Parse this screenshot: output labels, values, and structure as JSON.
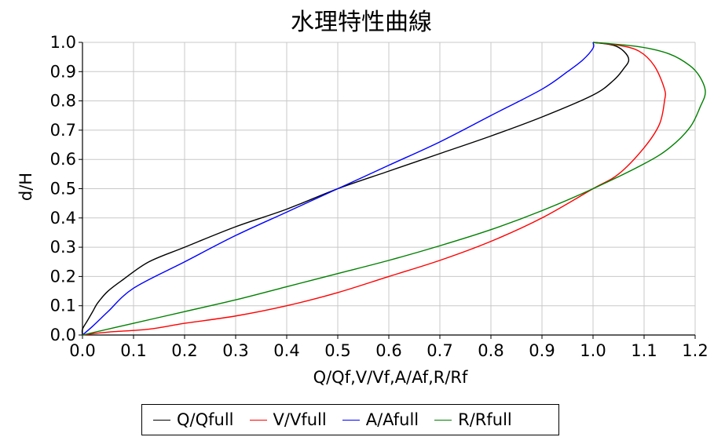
{
  "chart_data": {
    "type": "line",
    "title": "水理特性曲線",
    "xlabel": "Q/Qf,V/Vf,A/Af,R/Rf",
    "ylabel": "d/H",
    "xlim": [
      0,
      1.2
    ],
    "ylim": [
      0,
      1.0
    ],
    "x_ticks": [
      "0.0",
      "0.1",
      "0.2",
      "0.3",
      "0.4",
      "0.5",
      "0.6",
      "0.7",
      "0.8",
      "0.9",
      "1.0",
      "1.1",
      "1.2"
    ],
    "y_ticks": [
      "0.0",
      "0.1",
      "0.2",
      "0.3",
      "0.4",
      "0.5",
      "0.6",
      "0.7",
      "0.8",
      "0.9",
      "1.0"
    ],
    "grid": true,
    "legend_position": "bottom",
    "series": [
      {
        "name": "Q/Qfull",
        "color": "#000000",
        "points": [
          [
            0,
            0
          ],
          [
            0.0,
            0.02
          ],
          [
            0.01,
            0.05
          ],
          [
            0.02,
            0.08
          ],
          [
            0.03,
            0.11
          ],
          [
            0.05,
            0.15
          ],
          [
            0.08,
            0.19
          ],
          [
            0.13,
            0.25
          ],
          [
            0.2,
            0.3
          ],
          [
            0.3,
            0.37
          ],
          [
            0.4,
            0.43
          ],
          [
            0.5,
            0.5
          ],
          [
            0.6,
            0.56
          ],
          [
            0.7,
            0.62
          ],
          [
            0.8,
            0.68
          ],
          [
            0.9,
            0.745
          ],
          [
            1.0,
            0.82
          ],
          [
            1.04,
            0.87
          ],
          [
            1.06,
            0.91
          ],
          [
            1.07,
            0.94
          ],
          [
            1.06,
            0.97
          ],
          [
            1.04,
            0.99
          ],
          [
            1.0,
            1.0
          ]
        ]
      },
      {
        "name": "V/Vfull",
        "color": "#ff0000",
        "points": [
          [
            0,
            0
          ],
          [
            0.05,
            0.01
          ],
          [
            0.13,
            0.02
          ],
          [
            0.2,
            0.04
          ],
          [
            0.3,
            0.065
          ],
          [
            0.4,
            0.1
          ],
          [
            0.5,
            0.145
          ],
          [
            0.6,
            0.2
          ],
          [
            0.7,
            0.255
          ],
          [
            0.8,
            0.32
          ],
          [
            0.9,
            0.4
          ],
          [
            1.0,
            0.5
          ],
          [
            1.05,
            0.55
          ],
          [
            1.1,
            0.64
          ],
          [
            1.13,
            0.72
          ],
          [
            1.14,
            0.8
          ],
          [
            1.14,
            0.84
          ],
          [
            1.12,
            0.92
          ],
          [
            1.09,
            0.97
          ],
          [
            1.05,
            0.99
          ],
          [
            1.0,
            1.0
          ]
        ]
      },
      {
        "name": "A/Afull",
        "color": "#0000ff",
        "points": [
          [
            0,
            0
          ],
          [
            0.02,
            0.03
          ],
          [
            0.05,
            0.08
          ],
          [
            0.1,
            0.16
          ],
          [
            0.2,
            0.25
          ],
          [
            0.3,
            0.34
          ],
          [
            0.4,
            0.42
          ],
          [
            0.5,
            0.5
          ],
          [
            0.6,
            0.58
          ],
          [
            0.7,
            0.66
          ],
          [
            0.8,
            0.75
          ],
          [
            0.9,
            0.84
          ],
          [
            0.95,
            0.9
          ],
          [
            0.98,
            0.94
          ],
          [
            1.0,
            0.98
          ],
          [
            1.0,
            1.0
          ]
        ]
      },
      {
        "name": "R/Rfull",
        "color": "#008000",
        "points": [
          [
            0,
            0
          ],
          [
            0.1,
            0.04
          ],
          [
            0.2,
            0.08
          ],
          [
            0.3,
            0.12
          ],
          [
            0.4,
            0.165
          ],
          [
            0.5,
            0.21
          ],
          [
            0.6,
            0.255
          ],
          [
            0.7,
            0.305
          ],
          [
            0.8,
            0.36
          ],
          [
            0.9,
            0.425
          ],
          [
            1.0,
            0.5
          ],
          [
            1.1,
            0.585
          ],
          [
            1.15,
            0.64
          ],
          [
            1.19,
            0.71
          ],
          [
            1.21,
            0.78
          ],
          [
            1.22,
            0.83
          ],
          [
            1.21,
            0.88
          ],
          [
            1.19,
            0.92
          ],
          [
            1.15,
            0.96
          ],
          [
            1.09,
            0.985
          ],
          [
            1.0,
            1.0
          ]
        ]
      }
    ]
  }
}
